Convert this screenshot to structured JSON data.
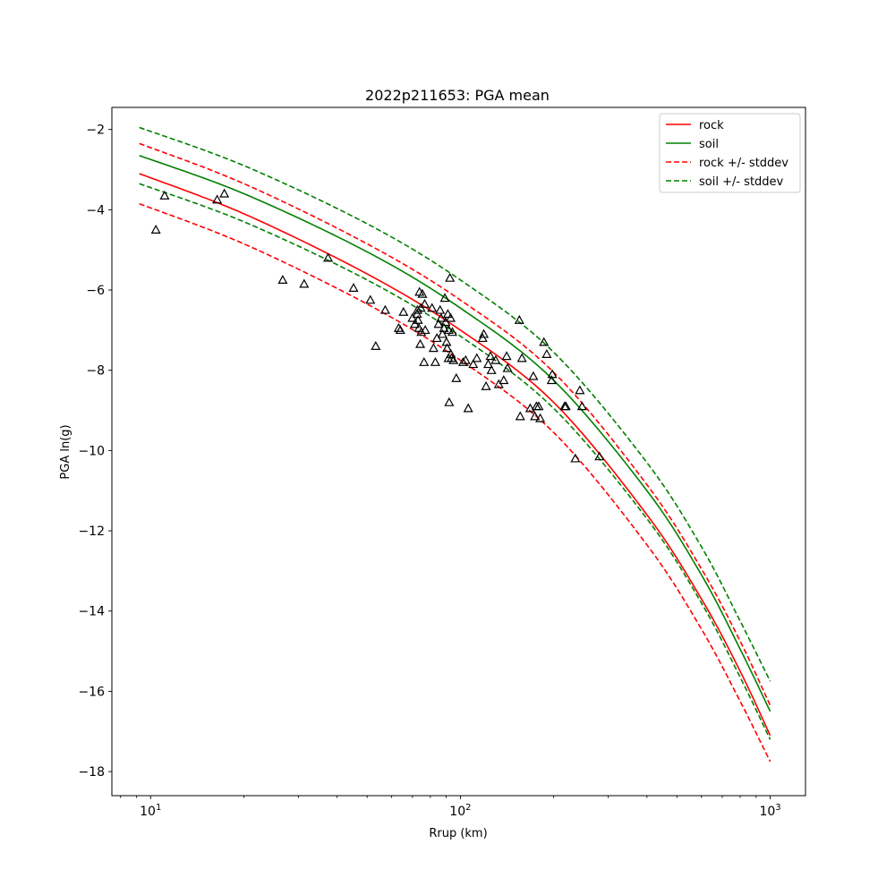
{
  "chart_data": {
    "type": "line",
    "title": "2022p211653: PGA mean",
    "xlabel": "Rrup (km)",
    "ylabel": "PGA ln(g)",
    "xscale": "log",
    "xlim": [
      7.5,
      1300
    ],
    "ylim": [
      -18.6,
      -1.45
    ],
    "xticks": [
      {
        "value": 10,
        "base": "10",
        "exp": "1"
      },
      {
        "value": 100,
        "base": "10",
        "exp": "2"
      },
      {
        "value": 1000,
        "base": "10",
        "exp": "3"
      }
    ],
    "yticks": [
      -2,
      -4,
      -6,
      -8,
      -10,
      -12,
      -14,
      -16,
      -18
    ],
    "ytick_labels": [
      "−2",
      "−4",
      "−6",
      "−8",
      "−10",
      "−12",
      "−14",
      "−16",
      "−18"
    ],
    "grid": false,
    "legend_position": "top-right",
    "legend": [
      {
        "label": "rock",
        "color": "#ff0000",
        "dash": "solid"
      },
      {
        "label": "soil",
        "color": "#008000",
        "dash": "solid"
      },
      {
        "label": "rock +/- stddev",
        "color": "#ff0000",
        "dash": "dashed"
      },
      {
        "label": "soil +/- stddev",
        "color": "#008000",
        "dash": "dashed"
      }
    ],
    "curves": [
      {
        "name": "rock",
        "color": "#ff0000",
        "dash": "solid",
        "x": [
          9.2,
          20,
          50,
          100,
          200,
          400,
          600,
          800,
          1000
        ],
        "y": [
          -3.1,
          -4.1,
          -5.6,
          -7.0,
          -8.8,
          -11.6,
          -13.7,
          -15.5,
          -17.1
        ]
      },
      {
        "name": "rock + stddev",
        "color": "#ff0000",
        "dash": "dashed",
        "x": [
          9.2,
          20,
          50,
          100,
          200,
          400,
          600,
          800,
          1000
        ],
        "y": [
          -2.35,
          -3.35,
          -4.85,
          -6.25,
          -8.05,
          -10.85,
          -12.95,
          -14.75,
          -16.35
        ]
      },
      {
        "name": "rock - stddev",
        "color": "#ff0000",
        "dash": "dashed",
        "x": [
          9.2,
          20,
          50,
          100,
          200,
          400,
          600,
          800,
          1000
        ],
        "y": [
          -3.85,
          -4.85,
          -6.35,
          -7.75,
          -9.55,
          -12.35,
          -14.45,
          -16.25,
          -17.75
        ]
      },
      {
        "name": "soil",
        "color": "#008000",
        "dash": "solid",
        "x": [
          9.2,
          20,
          50,
          100,
          200,
          400,
          600,
          800,
          1000
        ],
        "y": [
          -2.65,
          -3.6,
          -5.05,
          -6.45,
          -8.25,
          -11.0,
          -13.1,
          -14.95,
          -16.5
        ]
      },
      {
        "name": "soil + stddev",
        "color": "#008000",
        "dash": "dashed",
        "x": [
          9.2,
          20,
          50,
          100,
          200,
          400,
          600,
          800,
          1000
        ],
        "y": [
          -1.95,
          -2.9,
          -4.35,
          -5.75,
          -7.55,
          -10.3,
          -12.4,
          -14.25,
          -15.75
        ]
      },
      {
        "name": "soil - stddev",
        "color": "#008000",
        "dash": "dashed",
        "x": [
          9.2,
          20,
          50,
          100,
          200,
          400,
          600,
          800,
          1000
        ],
        "y": [
          -3.35,
          -4.3,
          -5.75,
          -7.15,
          -8.95,
          -11.7,
          -13.8,
          -15.65,
          -17.2
        ]
      }
    ],
    "observations": {
      "marker": "triangle",
      "color": "#000000",
      "points": [
        [
          10.4,
          -4.5
        ],
        [
          11.1,
          -3.65
        ],
        [
          16.4,
          -3.75
        ],
        [
          17.3,
          -3.6
        ],
        [
          26.7,
          -5.75
        ],
        [
          31.3,
          -5.85
        ],
        [
          37.4,
          -5.2
        ],
        [
          45.2,
          -5.95
        ],
        [
          51.2,
          -6.25
        ],
        [
          53.3,
          -7.4
        ],
        [
          57.2,
          -6.5
        ],
        [
          63.2,
          -6.95
        ],
        [
          64.0,
          -7.0
        ],
        [
          65.5,
          -6.55
        ],
        [
          70.0,
          -6.7
        ],
        [
          71.3,
          -6.85
        ],
        [
          72.5,
          -6.6
        ],
        [
          72.7,
          -6.5
        ],
        [
          73.0,
          -6.75
        ],
        [
          73.5,
          -6.95
        ],
        [
          73.8,
          -6.05
        ],
        [
          74.2,
          -7.35
        ],
        [
          74.5,
          -6.45
        ],
        [
          74.8,
          -7.05
        ],
        [
          75.4,
          -6.1
        ],
        [
          76.3,
          -7.8
        ],
        [
          76.7,
          -6.35
        ],
        [
          77.0,
          -7.0
        ],
        [
          81.0,
          -6.45
        ],
        [
          81.9,
          -7.45
        ],
        [
          83.0,
          -7.8
        ],
        [
          84.0,
          -7.2
        ],
        [
          85.0,
          -6.85
        ],
        [
          86.0,
          -6.5
        ],
        [
          86.6,
          -6.7
        ],
        [
          87.5,
          -7.1
        ],
        [
          88.5,
          -6.95
        ],
        [
          89.1,
          -6.2
        ],
        [
          89.6,
          -6.8
        ],
        [
          90.2,
          -7.3
        ],
        [
          90.6,
          -7.45
        ],
        [
          91.1,
          -6.6
        ],
        [
          91.5,
          -7.7
        ],
        [
          91.7,
          -7.0
        ],
        [
          92.0,
          -8.8
        ],
        [
          92.5,
          -5.7
        ],
        [
          93.0,
          -6.7
        ],
        [
          93.2,
          -7.6
        ],
        [
          93.6,
          -7.7
        ],
        [
          94.2,
          -7.05
        ],
        [
          95.0,
          -7.75
        ],
        [
          97.0,
          -8.2
        ],
        [
          102.0,
          -7.8
        ],
        [
          104.0,
          -7.75
        ],
        [
          106.0,
          -8.95
        ],
        [
          110.0,
          -7.85
        ],
        [
          113.0,
          -7.7
        ],
        [
          118.0,
          -7.2
        ],
        [
          119.0,
          -7.1
        ],
        [
          121.0,
          -8.4
        ],
        [
          123.0,
          -7.85
        ],
        [
          125.0,
          -7.65
        ],
        [
          126.0,
          -8.0
        ],
        [
          130.0,
          -7.75
        ],
        [
          133.0,
          -8.35
        ],
        [
          138.0,
          -8.25
        ],
        [
          141.0,
          -7.65
        ],
        [
          142.0,
          -7.95
        ],
        [
          155.0,
          -6.75
        ],
        [
          156.0,
          -9.15
        ],
        [
          158.0,
          -7.7
        ],
        [
          168.0,
          -8.95
        ],
        [
          172.0,
          -8.15
        ],
        [
          174.0,
          -9.15
        ],
        [
          176.0,
          -8.9
        ],
        [
          179.0,
          -8.9
        ],
        [
          181.0,
          -9.2
        ],
        [
          186.0,
          -7.3
        ],
        [
          190.0,
          -7.6
        ],
        [
          197.0,
          -8.25
        ],
        [
          198.0,
          -8.1
        ],
        [
          217.0,
          -8.9
        ],
        [
          219.0,
          -8.9
        ],
        [
          235.0,
          -10.2
        ],
        [
          243.0,
          -8.5
        ],
        [
          247.0,
          -8.9
        ],
        [
          281.0,
          -10.15
        ]
      ]
    }
  }
}
